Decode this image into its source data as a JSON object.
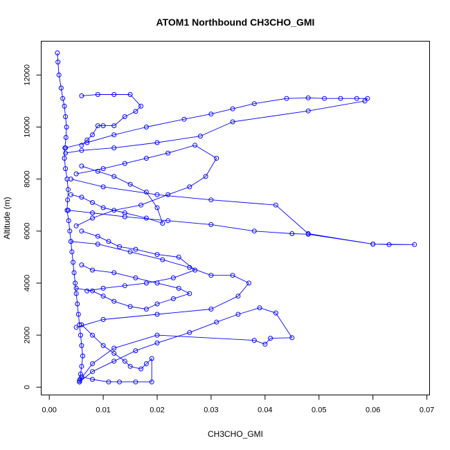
{
  "chart_data": {
    "type": "line",
    "title": "ATOM1 Northbound CH3CHO_GMI",
    "xlabel": "CH3CHO_GMI",
    "ylabel": "Altitude (m)",
    "xlim": [
      -0.0015,
      0.0705
    ],
    "ylim": [
      -300,
      13300
    ],
    "xticks": [
      0.0,
      0.01,
      0.02,
      0.03,
      0.04,
      0.05,
      0.06,
      0.07
    ],
    "xtick_labels": [
      "0.00",
      "0.01",
      "0.02",
      "0.03",
      "0.04",
      "0.05",
      "0.06",
      "0.07"
    ],
    "yticks": [
      0,
      2000,
      4000,
      6000,
      8000,
      10000,
      12000
    ],
    "ytick_labels": [
      "0",
      "2000",
      "4000",
      "6000",
      "8000",
      "10000",
      "12000"
    ],
    "grid": false,
    "legend": "none",
    "marker": "open-circle",
    "color": "#0000ff",
    "series": [
      {
        "x": [
          0.0015,
          0.0016,
          0.0018,
          0.0022,
          0.0025,
          0.0028,
          0.003,
          0.0032,
          0.0031,
          0.0029,
          0.0028,
          0.003,
          0.0033,
          0.0035,
          0.0034,
          0.0033,
          0.0036,
          0.0038,
          0.004,
          0.0042,
          0.0044,
          0.0046,
          0.0048,
          0.005,
          0.0052,
          0.0054,
          0.0056,
          0.0058,
          0.006,
          0.0062,
          0.006,
          0.0058,
          0.0057,
          0.0056
        ],
        "y": [
          12850,
          12500,
          12000,
          11500,
          11100,
          10800,
          10400,
          10000,
          9600,
          9200,
          8800,
          8400,
          8000,
          7600,
          7200,
          6800,
          6400,
          6000,
          5600,
          5200,
          4800,
          4400,
          4000,
          3600,
          3200,
          2800,
          2400,
          2000,
          1600,
          1200,
          800,
          500,
          300,
          200
        ]
      },
      {
        "x": [
          0.0056,
          0.008,
          0.012,
          0.016,
          0.02,
          0.026,
          0.031,
          0.035,
          0.039,
          0.042,
          0.045,
          0.041,
          0.04,
          0.038,
          0.02,
          0.012,
          0.008,
          0.0056
        ],
        "y": [
          200,
          600,
          1000,
          1400,
          1700,
          2100,
          2500,
          2800,
          3050,
          2850,
          1900,
          1880,
          1650,
          1800,
          2000,
          1500,
          900,
          250
        ]
      },
      {
        "x": [
          0.004,
          0.009,
          0.015,
          0.021,
          0.026,
          0.03,
          0.034,
          0.037,
          0.035,
          0.03,
          0.02,
          0.01,
          0.005
        ],
        "y": [
          5600,
          5500,
          5200,
          4900,
          4600,
          4300,
          4300,
          4000,
          3500,
          3000,
          2800,
          2600,
          2300
        ]
      },
      {
        "x": [
          0.0035,
          0.008,
          0.014,
          0.022,
          0.03,
          0.038,
          0.045,
          0.048,
          0.06,
          0.063,
          0.0677,
          0.06,
          0.048,
          0.042,
          0.03,
          0.02,
          0.01,
          0.004
        ],
        "y": [
          6800,
          6700,
          6550,
          6400,
          6250,
          6000,
          5900,
          5880,
          5500,
          5480,
          5480,
          5500,
          5900,
          7000,
          7200,
          7400,
          7700,
          8000
        ]
      },
      {
        "x": [
          0.003,
          0.007,
          0.012,
          0.018,
          0.025,
          0.03,
          0.034,
          0.038,
          0.044,
          0.048,
          0.051,
          0.054,
          0.057,
          0.059,
          0.0585,
          0.048,
          0.034,
          0.028,
          0.02,
          0.012,
          0.006,
          0.003
        ],
        "y": [
          9200,
          9400,
          9700,
          10000,
          10300,
          10500,
          10700,
          10900,
          11100,
          11120,
          11100,
          11100,
          11100,
          11100,
          11000,
          10620,
          10200,
          9650,
          9400,
          9200,
          9100,
          9000
        ]
      },
      {
        "x": [
          0.005,
          0.01,
          0.014,
          0.018,
          0.022,
          0.027,
          0.031,
          0.029,
          0.026,
          0.022,
          0.017,
          0.012,
          0.008,
          0.005
        ],
        "y": [
          8200,
          8400,
          8600,
          8800,
          9000,
          9300,
          8800,
          8100,
          7700,
          7400,
          7000,
          6800,
          6500,
          6200
        ]
      },
      {
        "x": [
          0.006,
          0.009,
          0.012,
          0.015,
          0.017,
          0.016,
          0.014,
          0.012,
          0.01,
          0.009,
          0.008,
          0.007,
          0.006
        ],
        "y": [
          11200,
          11250,
          11250,
          11250,
          10800,
          10600,
          10400,
          10050,
          10050,
          10050,
          9700,
          9500,
          9300
        ]
      },
      {
        "x": [
          0.005,
          0.008,
          0.01,
          0.012,
          0.015,
          0.018,
          0.02,
          0.023,
          0.026,
          0.024,
          0.02,
          0.016,
          0.012,
          0.008,
          0.006
        ],
        "y": [
          3800,
          3700,
          3500,
          3300,
          3100,
          3000,
          3200,
          3400,
          3600,
          3800,
          4000,
          4200,
          4400,
          4500,
          4700
        ]
      },
      {
        "x": [
          0.006,
          0.008,
          0.01,
          0.012,
          0.014,
          0.015,
          0.017,
          0.018,
          0.019,
          0.019,
          0.016,
          0.013,
          0.011,
          0.008,
          0.006
        ],
        "y": [
          2400,
          2000,
          1600,
          1300,
          1000,
          800,
          700,
          900,
          1100,
          200,
          200,
          200,
          200,
          300,
          400
        ]
      },
      {
        "x": [
          0.006,
          0.009,
          0.011,
          0.013,
          0.016,
          0.02,
          0.024,
          0.027,
          0.023,
          0.018,
          0.014,
          0.01,
          0.007
        ],
        "y": [
          6000,
          5800,
          5600,
          5400,
          5300,
          5100,
          5000,
          4500,
          4200,
          4000,
          3900,
          3800,
          3700
        ]
      },
      {
        "x": [
          0.004,
          0.006,
          0.008,
          0.01,
          0.014,
          0.018,
          0.021,
          0.02,
          0.018,
          0.015,
          0.012,
          0.009,
          0.006
        ],
        "y": [
          7400,
          7300,
          7100,
          6900,
          6700,
          6500,
          6300,
          6900,
          7500,
          7800,
          8100,
          8300,
          8500
        ]
      }
    ]
  }
}
